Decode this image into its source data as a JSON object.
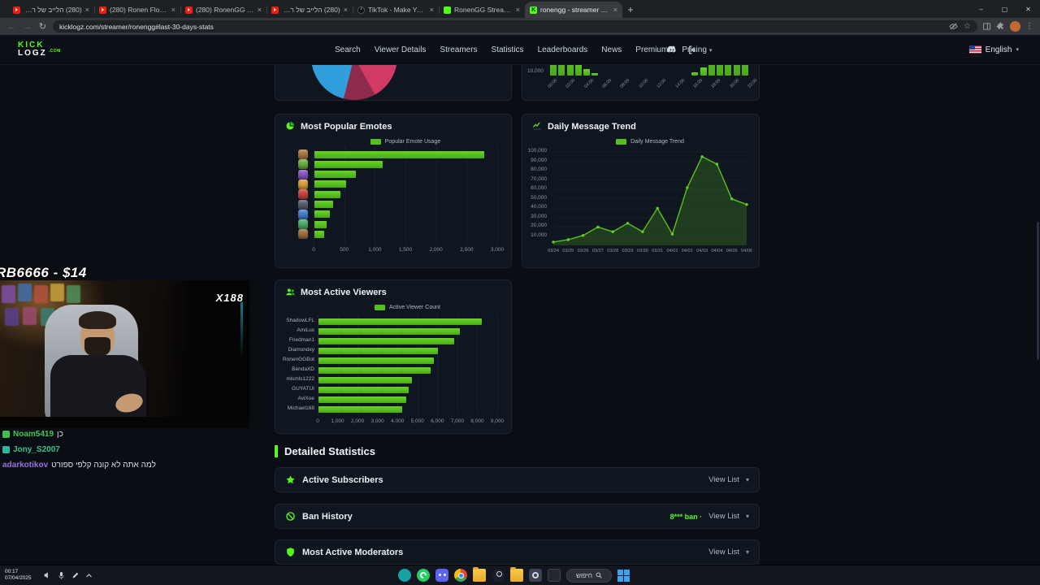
{
  "browser": {
    "tabs": [
      {
        "title": "(280) הלייב של רונן - YouTube",
        "favicon": "youtube",
        "active": false
      },
      {
        "title": "(280) Ronen Flow - YouTube",
        "favicon": "youtube",
        "active": false
      },
      {
        "title": "(280) RonenGG Daily - YouTube",
        "favicon": "youtube",
        "active": false
      },
      {
        "title": "(280) הלייב של רונן gg - YouTube",
        "favicon": "youtube",
        "active": false
      },
      {
        "title": "TikTok - Make Your Day",
        "favicon": "tiktok",
        "active": false
      },
      {
        "title": "RonenGG Stream - Watch Liv...",
        "favicon": "kick",
        "active": false
      },
      {
        "title": "ronengg - streamer Statistics",
        "favicon": "kicklogz",
        "active": true
      }
    ],
    "new_tab_label": "+",
    "url": "kicklogz.com/streamer/ronengg#last-30-days-stats",
    "window_controls": {
      "minimize": "–",
      "maximize": "▢",
      "close": "✕"
    }
  },
  "site": {
    "logo": {
      "line1": "KICK",
      "line2": "LOGZ",
      "suffix": ".COM"
    },
    "nav": [
      "Search",
      "Viewer Details",
      "Streamers",
      "Statistics",
      "Leaderboards",
      "News",
      "Premium",
      "Pricing"
    ],
    "language": "English"
  },
  "chart_data": [
    {
      "id": "hourly_messages_partial",
      "type": "bar",
      "x": [
        "00:00",
        "02:00",
        "04:00",
        "06:00",
        "08:00",
        "10:00",
        "12:00",
        "14:00",
        "16:00",
        "18:00",
        "20:00",
        "22:00"
      ],
      "values_pct_of_max": [
        55,
        68,
        50,
        37,
        13,
        5,
        0,
        0,
        0,
        0,
        0,
        0,
        0,
        0,
        0,
        0,
        0,
        7,
        17,
        88,
        98,
        95,
        92,
        82
      ],
      "visible_ytick": "10,000"
    },
    {
      "id": "category_pie_partial",
      "type": "pie",
      "segments": [
        {
          "name": "segment-1",
          "color": "#ef5f92",
          "value": 20
        },
        {
          "name": "segment-2",
          "color": "#d23a66",
          "value": 22
        },
        {
          "name": "segment-3",
          "color": "#8e2a4c",
          "value": 12
        },
        {
          "name": "segment-4",
          "color": "#2f9edb",
          "value": 34
        },
        {
          "name": "segment-5",
          "color": "#46b46a",
          "value": 7
        },
        {
          "name": "segment-6",
          "color": "#55606e",
          "value": 5
        }
      ]
    },
    {
      "id": "most_popular_emotes",
      "type": "bar",
      "orientation": "horizontal",
      "title": "Most Popular Emotes",
      "icon": "pie-chart-icon",
      "legend": "Popular Emote Usage",
      "categories": [
        "emote-1",
        "emote-2",
        "emote-3",
        "emote-4",
        "emote-5",
        "emote-6",
        "emote-7",
        "emote-8",
        "emote-9"
      ],
      "values": [
        2770,
        1120,
        680,
        520,
        420,
        310,
        250,
        200,
        160
      ],
      "xlim": [
        0,
        3000
      ],
      "xticks": [
        "0",
        "500",
        "1,000",
        "1,500",
        "2,000",
        "2,500",
        "3,000"
      ],
      "emote_colors": [
        "#b07a3e",
        "#6db33f",
        "#8a56c2",
        "#e0a23a",
        "#cf4436",
        "#55606e",
        "#3f7fd1",
        "#49b06a",
        "#a3703c"
      ]
    },
    {
      "id": "daily_message_trend",
      "type": "line",
      "title": "Daily Message Trend",
      "icon": "line-chart-icon",
      "legend": "Daily Message Trend",
      "x": [
        "03/24",
        "03/25",
        "03/26",
        "03/27",
        "03/28",
        "03/29",
        "03/30",
        "03/31",
        "04/01",
        "04/02",
        "04/03",
        "04/04",
        "04/05",
        "04/06"
      ],
      "values": [
        4000,
        6500,
        11000,
        20000,
        15000,
        24000,
        15000,
        40000,
        12500,
        62000,
        95000,
        87000,
        50000,
        44000
      ],
      "ylim": [
        0,
        100000
      ],
      "yticks": [
        "100,000",
        "90,000",
        "80,000",
        "70,000",
        "60,000",
        "50,000",
        "40,000",
        "30,000",
        "20,000",
        "10,000"
      ]
    },
    {
      "id": "most_active_viewers",
      "type": "bar",
      "orientation": "horizontal",
      "title": "Most Active Viewers",
      "icon": "users-icon",
      "legend": "Active Viewer Count",
      "categories": [
        "ShadowLFL",
        "AmiLux",
        "Friedman1",
        "Diamondxy",
        "RonenGGBot",
        "BendaXD",
        "mlsmls1222",
        "GUYATUI",
        "AviXoe",
        "Michael168"
      ],
      "values": [
        8200,
        7100,
        6800,
        6000,
        5800,
        5600,
        4700,
        4500,
        4400,
        4200
      ],
      "xlim": [
        0,
        9000
      ],
      "xticks": [
        "0",
        "1,000",
        "2,000",
        "3,000",
        "4,000",
        "5,000",
        "6,000",
        "7,000",
        "8,000",
        "9,000"
      ]
    }
  ],
  "sections": {
    "detailed_statistics_title": "Detailed Statistics",
    "rows": [
      {
        "icon": "star-icon",
        "label": "Active Subscribers",
        "meta": "",
        "action": "View List"
      },
      {
        "icon": "ban-icon",
        "label": "Ban History",
        "meta": "8*** ban ·",
        "action": "View List"
      },
      {
        "icon": "shield-icon",
        "label": "Most Active Moderators",
        "meta": "",
        "action": "View List"
      }
    ]
  },
  "stream_overlay": {
    "donation_text": "RB6666 - $14",
    "viewer_multiplier": "X188",
    "chat": [
      {
        "badge": "#3fbf4f",
        "user": "Noam5419",
        "user_color": "#42c74f",
        "text": "כן"
      },
      {
        "badge": "#2db5a0",
        "user": "Jony_S2007",
        "user_color": "#2fc48d",
        "text": ""
      },
      {
        "badge": "",
        "user": "adarkotikov",
        "user_color": "#9a6fe0",
        "text": "למה אתה לא קונה קלפי ספורט"
      }
    ]
  },
  "taskbar": {
    "time": "00:17",
    "date": "07/04/2025",
    "search_label": "חיפוש",
    "apps": [
      "teams",
      "whatsapp",
      "discord",
      "chrome",
      "folder",
      "steam",
      "folder",
      "settings",
      "media"
    ]
  }
}
